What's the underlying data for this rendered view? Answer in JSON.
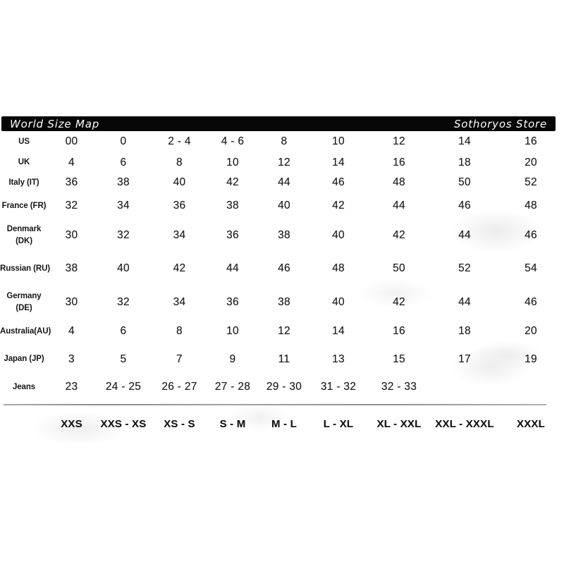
{
  "header": {
    "title": "World Size Map",
    "store": "Sothoryos Store"
  },
  "table": {
    "rows": [
      {
        "label_lines": [
          "US"
        ],
        "values": [
          "00",
          "0",
          "2 - 4",
          "4 - 6",
          "8",
          "10",
          "12",
          "14",
          "16"
        ]
      },
      {
        "label_lines": [
          "UK"
        ],
        "values": [
          "4",
          "6",
          "8",
          "10",
          "12",
          "14",
          "16",
          "18",
          "20"
        ]
      },
      {
        "label_lines": [
          "Italy (IT)"
        ],
        "values": [
          "36",
          "38",
          "40",
          "42",
          "44",
          "46",
          "48",
          "50",
          "52"
        ]
      },
      {
        "label_lines": [
          "France (FR)"
        ],
        "values": [
          "32",
          "34",
          "36",
          "38",
          "40",
          "42",
          "44",
          "46",
          "48"
        ]
      },
      {
        "label_lines": [
          "Denmark",
          "(DK)"
        ],
        "values": [
          "30",
          "32",
          "34",
          "36",
          "38",
          "40",
          "42",
          "44",
          "46"
        ]
      },
      {
        "label_lines": [
          "Russian (RU)"
        ],
        "values": [
          "38",
          "40",
          "42",
          "44",
          "46",
          "48",
          "50",
          "52",
          "54"
        ]
      },
      {
        "label_lines": [
          "Germany",
          "(DE)"
        ],
        "values": [
          "30",
          "32",
          "34",
          "36",
          "38",
          "40",
          "42",
          "44",
          "46"
        ]
      },
      {
        "label_lines": [
          "Australia(AU)"
        ],
        "values": [
          "4",
          "6",
          "8",
          "10",
          "12",
          "14",
          "16",
          "18",
          "20"
        ]
      },
      {
        "label_lines": [
          "Japan (JP)"
        ],
        "values": [
          "3",
          "5",
          "7",
          "9",
          "11",
          "13",
          "15",
          "17",
          "19"
        ]
      },
      {
        "label_lines": [
          "Jeans"
        ],
        "values": [
          "23",
          "24 - 25",
          "26 - 27",
          "27 - 28",
          "29 - 30",
          "31 - 32",
          "32 - 33",
          "",
          ""
        ]
      }
    ],
    "footer_sizes": [
      "XXS",
      "XXS - XS",
      "XS - S",
      "S - M",
      "M - L",
      "L - XL",
      "XL - XXL",
      "XXL - XXXL",
      "XXXL"
    ]
  },
  "colors": {
    "header_bg": "#060606",
    "header_text": "#ffffff",
    "body_text": "#1f1f1f",
    "divider": "#8f8f8f"
  }
}
